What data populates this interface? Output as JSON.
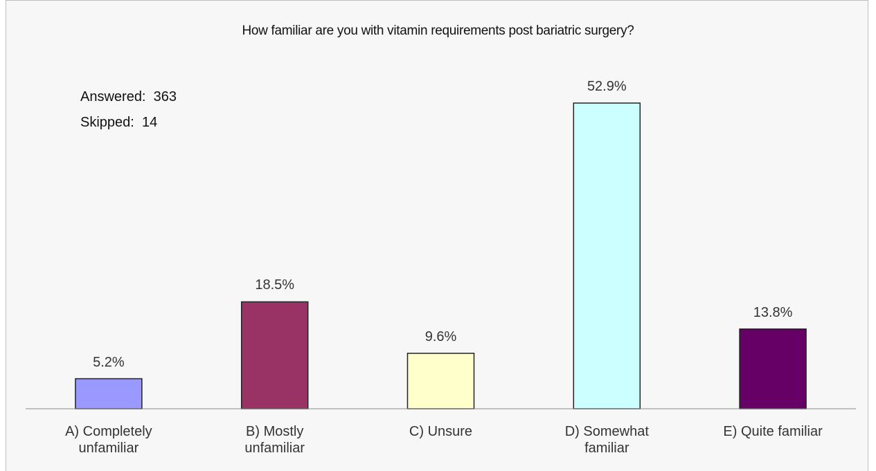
{
  "chart_data": {
    "type": "bar",
    "title": "How familiar are you with vitamin requirements post bariatric surgery?",
    "annotations": [
      "Answered:  363",
      "Skipped:  14"
    ],
    "categories": [
      "A) Completely unfamiliar",
      "B) Mostly unfamiliar",
      "C) Unsure",
      "D) Somewhat familiar",
      "E) Quite familiar"
    ],
    "values": [
      5.2,
      18.5,
      9.6,
      52.9,
      13.8
    ],
    "value_labels": [
      "5.2%",
      "18.5%",
      "9.6%",
      "52.9%",
      "13.8%"
    ],
    "colors": [
      "#9999ff",
      "#993366",
      "#ffffcc",
      "#ccffff",
      "#660066"
    ]
  }
}
